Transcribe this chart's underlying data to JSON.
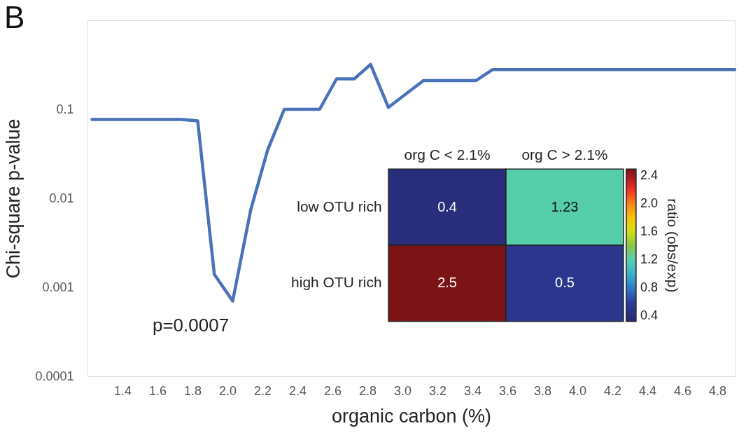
{
  "chart_data": [
    {
      "type": "line",
      "title": "B",
      "xlabel": "organic carbon (%)",
      "ylabel": "Chi-square p-value",
      "x": [
        1.226,
        1.735,
        1.83,
        1.925,
        2.03,
        2.133,
        2.23,
        2.325,
        2.527,
        2.624,
        2.725,
        2.818,
        2.92,
        3.12,
        3.42,
        3.517,
        4.9
      ],
      "series": [
        {
          "color": "#4a72b8",
          "values": [
            0.077,
            0.077,
            0.074,
            0.0014,
            0.0007,
            0.0074,
            0.035,
            0.1,
            0.1,
            0.22,
            0.22,
            0.32,
            0.105,
            0.21,
            0.21,
            0.28,
            0.28
          ]
        }
      ],
      "xlim": [
        1.2,
        4.9
      ],
      "ylim": [
        0.0001,
        1
      ],
      "xticks": [
        1.4,
        1.6,
        1.8,
        {
          "value": 2,
          "label": "2.0"
        },
        2.2,
        2.4,
        2.6,
        2.8,
        {
          "value": 3,
          "label": "3.0"
        },
        3.2,
        3.4,
        3.6,
        3.8,
        {
          "value": 4,
          "label": "4.0"
        },
        4.2,
        4.4,
        4.6,
        4.8
      ],
      "yticks": [
        0.0001,
        0.001,
        0.01,
        0.1
      ],
      "log": true,
      "grid": false,
      "annotations": [
        {
          "text": "p=0.0007",
          "x": 2.03,
          "y": 0.0007
        }
      ]
    },
    {
      "type": "heatmap",
      "categories": [
        "org C < 2.1%",
        "org C > 2.1%"
      ],
      "y_categories": [
        "low OTU rich",
        "high OTU rich"
      ],
      "cells": [
        [
          0.4,
          1.23
        ],
        [
          2.5,
          0.5
        ]
      ],
      "data_labels": true,
      "clim": [
        0.32,
        2.5
      ],
      "cticks": [
        0.4,
        0.8,
        1.2,
        1.6,
        {
          "value": 2,
          "label": "2.0"
        },
        2.4
      ],
      "clabel": "ratio (obs/exp)"
    }
  ]
}
